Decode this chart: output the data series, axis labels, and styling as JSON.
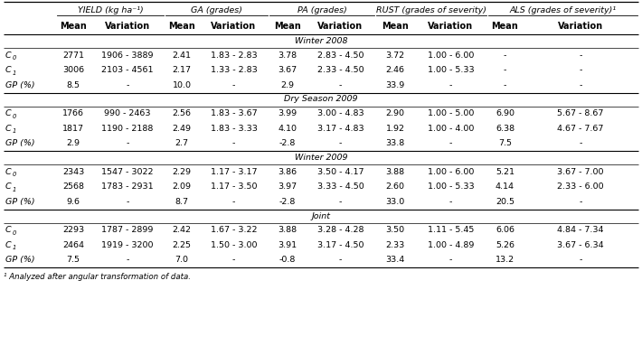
{
  "col_groups": [
    {
      "label": "YIELD (kg ha⁻¹)",
      "cols": [
        1,
        2
      ]
    },
    {
      "label": "GA (grades)",
      "cols": [
        3,
        4
      ]
    },
    {
      "label": "PA (grades)",
      "cols": [
        5,
        6
      ]
    },
    {
      "label": "RUST (grades of severity)",
      "cols": [
        7,
        8
      ]
    },
    {
      "label": "ALS (grades of severity)¹",
      "cols": [
        9,
        10
      ]
    }
  ],
  "sub_headers": [
    "Mean",
    "Variation",
    "Mean",
    "Variation",
    "Mean",
    "Variation",
    "Mean",
    "Variation",
    "Mean",
    "Variation"
  ],
  "sections": [
    {
      "label": "Winter 2008",
      "rows": [
        {
          "row_label": "C0",
          "values": [
            "2771",
            "1906 - 3889",
            "2.41",
            "1.83 - 2.83",
            "3.78",
            "2.83 - 4.50",
            "3.72",
            "1.00 - 6.00",
            "-",
            "-"
          ]
        },
        {
          "row_label": "C1",
          "values": [
            "3006",
            "2103 - 4561",
            "2.17",
            "1.33 - 2.83",
            "3.67",
            "2.33 - 4.50",
            "2.46",
            "1.00 - 5.33",
            "-",
            "-"
          ]
        },
        {
          "row_label": "GP",
          "values": [
            "8.5",
            "-",
            "10.0",
            "-",
            "2.9",
            "-",
            "33.9",
            "-",
            "-",
            "-"
          ]
        }
      ]
    },
    {
      "label": "Dry Season 2009",
      "rows": [
        {
          "row_label": "C0",
          "values": [
            "1766",
            "990 - 2463",
            "2.56",
            "1.83 - 3.67",
            "3.99",
            "3.00 - 4.83",
            "2.90",
            "1.00 - 5.00",
            "6.90",
            "5.67 - 8.67"
          ]
        },
        {
          "row_label": "C1",
          "values": [
            "1817",
            "1190 - 2188",
            "2.49",
            "1.83 - 3.33",
            "4.10",
            "3.17 - 4.83",
            "1.92",
            "1.00 - 4.00",
            "6.38",
            "4.67 - 7.67"
          ]
        },
        {
          "row_label": "GP",
          "values": [
            "2.9",
            "-",
            "2.7",
            "-",
            "-2.8",
            "-",
            "33.8",
            "-",
            "7.5",
            "-"
          ]
        }
      ]
    },
    {
      "label": "Winter 2009",
      "rows": [
        {
          "row_label": "C0",
          "values": [
            "2343",
            "1547 - 3022",
            "2.29",
            "1.17 - 3.17",
            "3.86",
            "3.50 - 4.17",
            "3.88",
            "1.00 - 6.00",
            "5.21",
            "3.67 - 7.00"
          ]
        },
        {
          "row_label": "C1",
          "values": [
            "2568",
            "1783 - 2931",
            "2.09",
            "1.17 - 3.50",
            "3.97",
            "3.33 - 4.50",
            "2.60",
            "1.00 - 5.33",
            "4.14",
            "2.33 - 6.00"
          ]
        },
        {
          "row_label": "GP",
          "values": [
            "9.6",
            "-",
            "8.7",
            "-",
            "-2.8",
            "-",
            "33.0",
            "-",
            "20.5",
            "-"
          ]
        }
      ]
    },
    {
      "label": "Joint",
      "rows": [
        {
          "row_label": "C0",
          "values": [
            "2293",
            "1787 - 2899",
            "2.42",
            "1.67 - 3.22",
            "3.88",
            "3.28 - 4.28",
            "3.50",
            "1.11 - 5.45",
            "6.06",
            "4.84 - 7.34"
          ]
        },
        {
          "row_label": "C1",
          "values": [
            "2464",
            "1919 - 3200",
            "2.25",
            "1.50 - 3.00",
            "3.91",
            "3.17 - 4.50",
            "2.33",
            "1.00 - 4.89",
            "5.26",
            "3.67 - 6.34"
          ]
        },
        {
          "row_label": "GP",
          "values": [
            "7.5",
            "-",
            "7.0",
            "-",
            "-0.8",
            "-",
            "33.4",
            "-",
            "13.2",
            "-"
          ]
        }
      ]
    }
  ],
  "footnote": "¹ Analyzed after angular transformation of data."
}
